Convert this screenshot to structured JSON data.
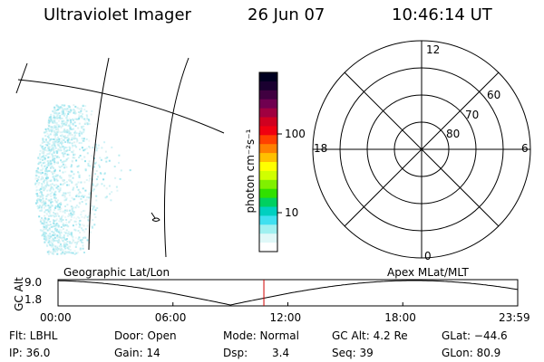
{
  "header": {
    "title": "Ultraviolet Imager",
    "date": "26 Jun 07",
    "time": "10:46:14 UT"
  },
  "colorbar": {
    "unit_label": "photon cm⁻²s⁻¹",
    "tick_100": "100",
    "tick_10": "10",
    "colors": [
      "#000020",
      "#1a0030",
      "#400040",
      "#700050",
      "#a00040",
      "#d00020",
      "#f00010",
      "#ff4000",
      "#ff8000",
      "#ffc000",
      "#ffff00",
      "#d0ff00",
      "#80f000",
      "#30e000",
      "#00d060",
      "#00d0c0",
      "#40e0f0",
      "#a0f0f0",
      "#e0f8f8",
      "#ffffff"
    ]
  },
  "polar_plot": {
    "label_12": "12",
    "label_18": "18",
    "label_6": "6",
    "label_0": "0",
    "label_60": "60",
    "label_70": "70",
    "label_80": "80"
  },
  "altitude_plot": {
    "ylabel": "GC Alt",
    "ytick_top": "9.0",
    "ytick_bottom": "1.8",
    "left_title": "Geographic Lat/Lon",
    "right_title": "Apex MLat/MLT",
    "xticks": [
      "00:00",
      "06:00",
      "12:00",
      "18:00",
      "23:59"
    ],
    "current_time_frac": 0.4478,
    "marker_color": "#d00000"
  },
  "footer": {
    "flt": "Flt: LBHL",
    "ip": "IP: 36.0",
    "door": "Door: Open",
    "gain": "Gain: 14",
    "mode": "Mode: Normal",
    "dsp_label": "Dsp:",
    "dsp_value": "3.4",
    "gcalt": "GC Alt: 4.2 Re",
    "seq": "Seq: 39",
    "glat": "GLat: −44.6",
    "glon": "GLon:  80.9"
  }
}
